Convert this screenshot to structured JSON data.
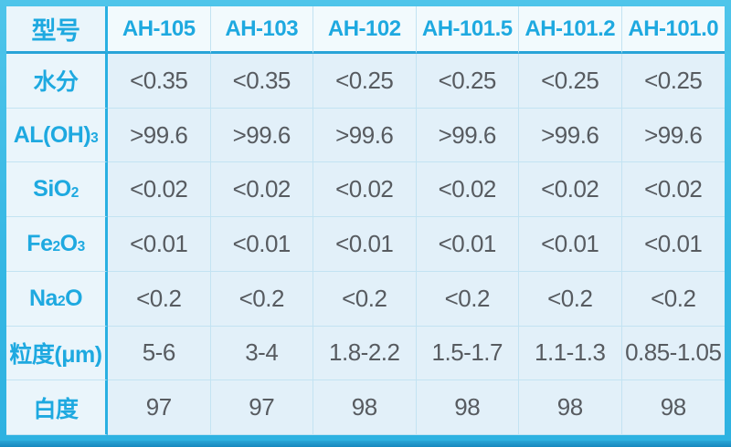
{
  "table": {
    "title_semantic": "aluminium-hydroxide-product-specifications",
    "header": [
      "型号",
      "AH-105",
      "AH-103",
      "AH-102",
      "AH-101.5",
      "AH-101.2",
      "AH-101.0"
    ],
    "rows": [
      {
        "label_parts": [
          "水分"
        ],
        "values": [
          "<0.35",
          "<0.35",
          "<0.25",
          "<0.25",
          "<0.25",
          "<0.25"
        ]
      },
      {
        "label_parts": [
          "AL(OH)",
          "3"
        ],
        "values": [
          ">99.6",
          ">99.6",
          ">99.6",
          ">99.6",
          ">99.6",
          ">99.6"
        ]
      },
      {
        "label_parts": [
          "SiO",
          "2"
        ],
        "values": [
          "<0.02",
          "<0.02",
          "<0.02",
          "<0.02",
          "<0.02",
          "<0.02"
        ]
      },
      {
        "label_parts": [
          "Fe",
          "2",
          "O",
          "3"
        ],
        "values": [
          "<0.01",
          "<0.01",
          "<0.01",
          "<0.01",
          "<0.01",
          "<0.01"
        ]
      },
      {
        "label_parts": [
          "Na",
          "2",
          "O"
        ],
        "values": [
          "<0.2",
          "<0.2",
          "<0.2",
          "<0.2",
          "<0.2",
          "<0.2"
        ]
      },
      {
        "label_parts": [
          "粒度(μm)"
        ],
        "values": [
          "5-6",
          "3-4",
          "1.8-2.2",
          "1.5-1.7",
          "1.1-1.3",
          "0.85-1.05"
        ]
      },
      {
        "label_parts": [
          "白度"
        ],
        "values": [
          "97",
          "97",
          "98",
          "98",
          "98",
          "98"
        ]
      }
    ]
  },
  "colors": {
    "frame_border": "#35b7e4",
    "strong_line": "#29b0e2",
    "grid_line": "#c3e3f2",
    "header_bg": "#f2fafd",
    "label_bg": "#eaf5fb",
    "cell_bg": "#e2f0f9",
    "accent_text": "#1ea9e0",
    "value_text": "#575b60",
    "bottom_bar": "#1787bd"
  }
}
